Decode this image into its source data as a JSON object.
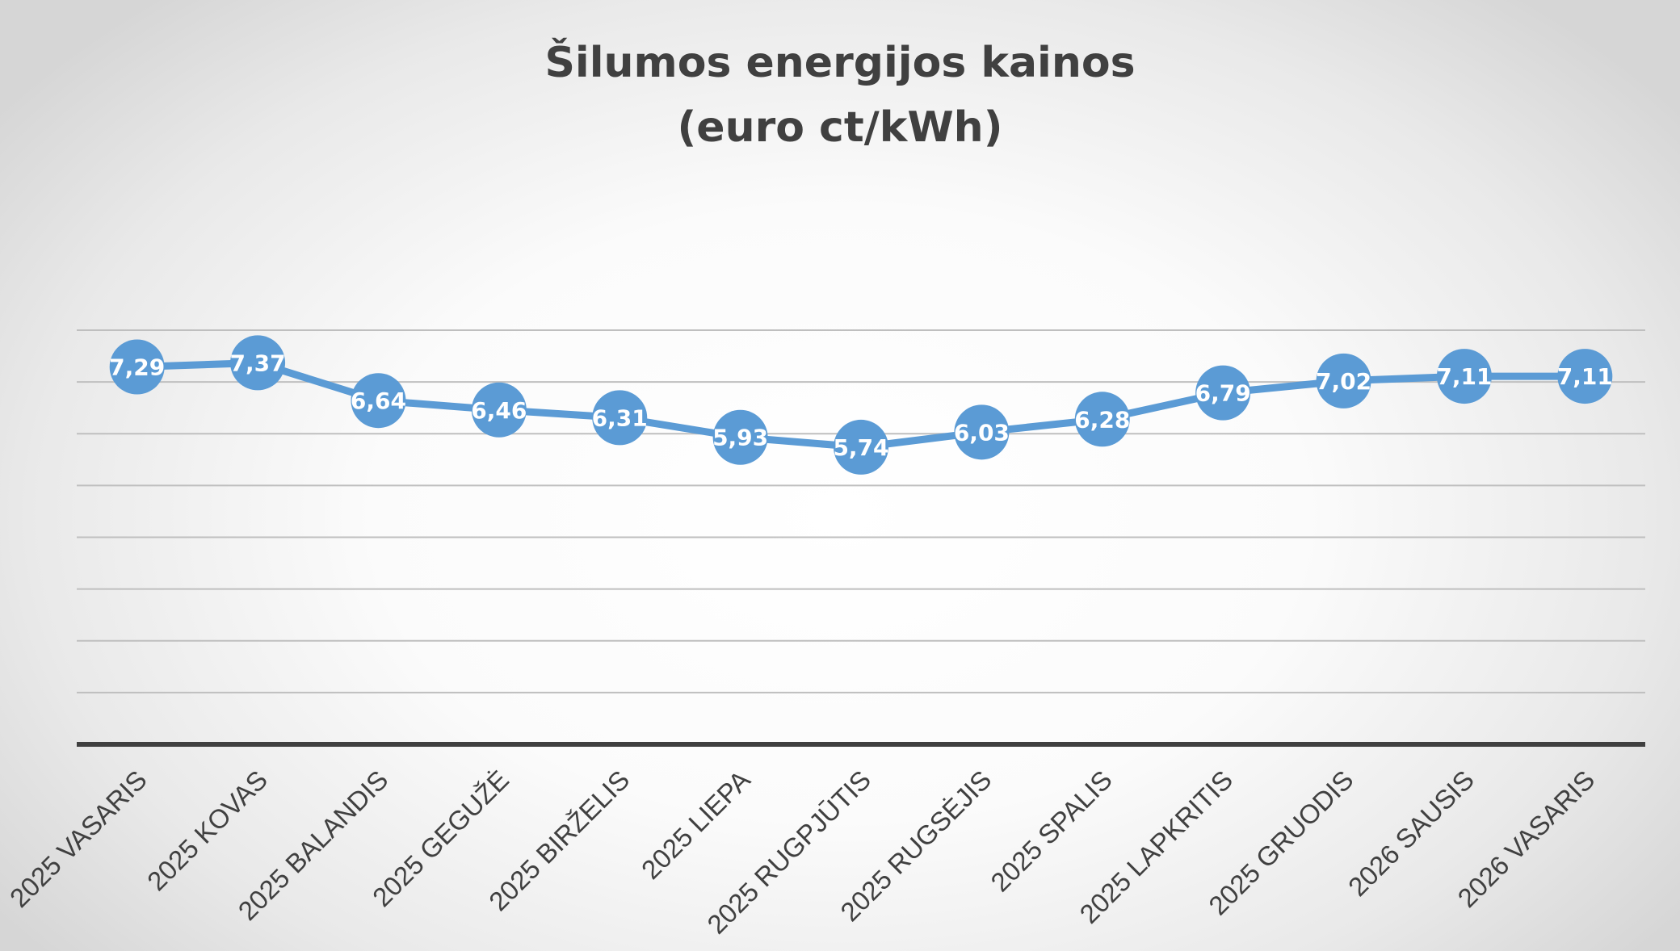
{
  "chart_data": {
    "type": "line",
    "title": "Šilumos energijos kainos",
    "subtitle": "(euro ct/kWh)",
    "xlabel": "",
    "ylabel": "",
    "categories": [
      "2025 VASARIS",
      "2025 KOVAS",
      "2025 BALANDIS",
      "2025 GEGUŽĖ",
      "2025 BIRŽELIS",
      "2025 LIEPA",
      "2025 RUGPJŪTIS",
      "2025 RUGSĖJIS",
      "2025 SPALIS",
      "2025 LAPKRITIS",
      "2025 GRUODIS",
      "2026 SAUSIS",
      "2026 VASARIS"
    ],
    "series": [
      {
        "values": [
          7.29,
          7.37,
          6.64,
          6.46,
          6.31,
          5.93,
          5.74,
          6.03,
          6.28,
          6.79,
          7.02,
          7.11,
          7.11
        ],
        "labels": [
          "7,29",
          "7,37",
          "6,64",
          "6,46",
          "6,31",
          "5,93",
          "5,74",
          "6,03",
          "6,28",
          "6,79",
          "7,02",
          "7,11",
          "7,11"
        ],
        "color": "#5b9bd5"
      }
    ],
    "ylim": [
      0,
      8
    ],
    "grid": true,
    "legend": "none",
    "colors": {
      "gridline": "#bfbfbf",
      "axis": "#404040",
      "label": "#ffffff"
    }
  }
}
